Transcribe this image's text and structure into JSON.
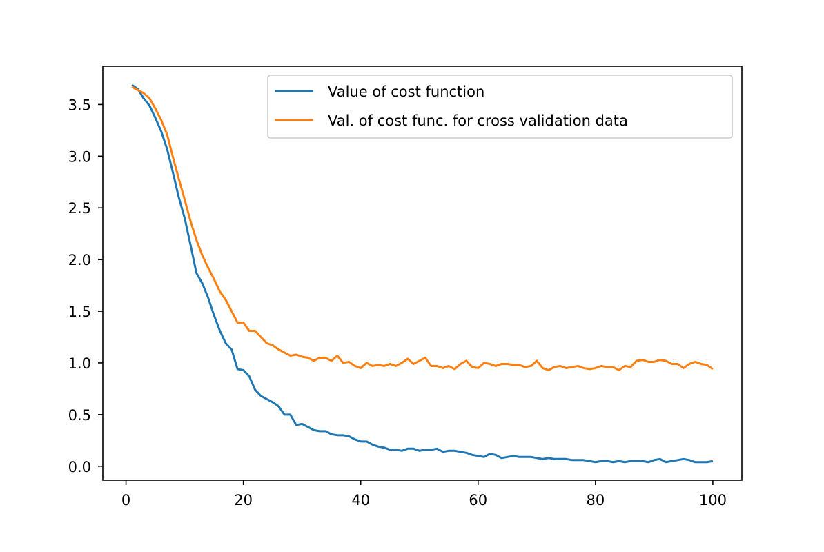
{
  "chart_data": {
    "type": "line",
    "title": "",
    "xlabel": "",
    "ylabel": "",
    "xlim": [
      -3.95,
      104.95
    ],
    "ylim": [
      -0.135,
      3.87
    ],
    "x_ticks": [
      0,
      20,
      40,
      60,
      80,
      100
    ],
    "x_tick_labels": [
      "0",
      "20",
      "40",
      "60",
      "80",
      "100"
    ],
    "y_ticks": [
      0.0,
      0.5,
      1.0,
      1.5,
      2.0,
      2.5,
      3.0,
      3.5
    ],
    "y_tick_labels": [
      "0.0",
      "0.5",
      "1.0",
      "1.5",
      "2.0",
      "2.5",
      "3.0",
      "3.5"
    ],
    "grid": false,
    "legend_position": "top-right",
    "x": [
      1,
      2,
      3,
      4,
      5,
      6,
      7,
      8,
      9,
      10,
      11,
      12,
      13,
      14,
      15,
      16,
      17,
      18,
      19,
      20,
      21,
      22,
      23,
      24,
      25,
      26,
      27,
      28,
      29,
      30,
      31,
      32,
      33,
      34,
      35,
      36,
      37,
      38,
      39,
      40,
      41,
      42,
      43,
      44,
      45,
      46,
      47,
      48,
      49,
      50,
      51,
      52,
      53,
      54,
      55,
      56,
      57,
      58,
      59,
      60,
      61,
      62,
      63,
      64,
      65,
      66,
      67,
      68,
      69,
      70,
      71,
      72,
      73,
      74,
      75,
      76,
      77,
      78,
      79,
      80,
      81,
      82,
      83,
      84,
      85,
      86,
      87,
      88,
      89,
      90,
      91,
      92,
      93,
      94,
      95,
      96,
      97,
      98,
      99,
      100
    ],
    "series": [
      {
        "name": "Value of cost function",
        "color": "#1f77b4",
        "values": [
          3.69,
          3.65,
          3.56,
          3.49,
          3.37,
          3.24,
          3.07,
          2.84,
          2.6,
          2.4,
          2.14,
          1.87,
          1.77,
          1.63,
          1.46,
          1.31,
          1.19,
          1.13,
          0.94,
          0.93,
          0.87,
          0.74,
          0.68,
          0.65,
          0.62,
          0.58,
          0.5,
          0.5,
          0.4,
          0.41,
          0.38,
          0.35,
          0.34,
          0.34,
          0.31,
          0.3,
          0.3,
          0.29,
          0.26,
          0.24,
          0.24,
          0.21,
          0.19,
          0.18,
          0.16,
          0.16,
          0.15,
          0.17,
          0.17,
          0.15,
          0.16,
          0.16,
          0.17,
          0.14,
          0.15,
          0.15,
          0.14,
          0.13,
          0.11,
          0.1,
          0.09,
          0.12,
          0.11,
          0.08,
          0.09,
          0.1,
          0.09,
          0.09,
          0.09,
          0.08,
          0.07,
          0.08,
          0.07,
          0.07,
          0.07,
          0.06,
          0.06,
          0.06,
          0.05,
          0.04,
          0.05,
          0.05,
          0.04,
          0.05,
          0.04,
          0.05,
          0.05,
          0.05,
          0.04,
          0.06,
          0.07,
          0.04,
          0.05,
          0.06,
          0.07,
          0.06,
          0.04,
          0.04,
          0.04,
          0.05
        ]
      },
      {
        "name": "Val. of cost func. for cross validation data",
        "color": "#ff7f0e",
        "values": [
          3.67,
          3.64,
          3.61,
          3.56,
          3.46,
          3.35,
          3.21,
          2.99,
          2.78,
          2.58,
          2.37,
          2.19,
          2.04,
          1.92,
          1.81,
          1.69,
          1.61,
          1.5,
          1.39,
          1.39,
          1.31,
          1.31,
          1.25,
          1.19,
          1.17,
          1.13,
          1.1,
          1.07,
          1.08,
          1.06,
          1.05,
          1.02,
          1.05,
          1.05,
          1.02,
          1.07,
          1.0,
          1.01,
          0.97,
          0.95,
          1.0,
          0.97,
          0.98,
          0.97,
          0.99,
          0.97,
          1.0,
          1.04,
          0.99,
          1.02,
          1.05,
          0.97,
          0.97,
          0.95,
          0.97,
          0.94,
          0.99,
          1.02,
          0.96,
          0.95,
          1.0,
          0.99,
          0.97,
          0.99,
          0.99,
          0.98,
          0.98,
          0.96,
          0.97,
          1.02,
          0.95,
          0.93,
          0.96,
          0.97,
          0.95,
          0.96,
          0.97,
          0.95,
          0.94,
          0.95,
          0.97,
          0.96,
          0.96,
          0.93,
          0.97,
          0.96,
          1.02,
          1.03,
          1.01,
          1.01,
          1.03,
          1.02,
          0.99,
          0.99,
          0.95,
          0.99,
          1.01,
          0.99,
          0.98,
          0.94
        ]
      }
    ]
  }
}
